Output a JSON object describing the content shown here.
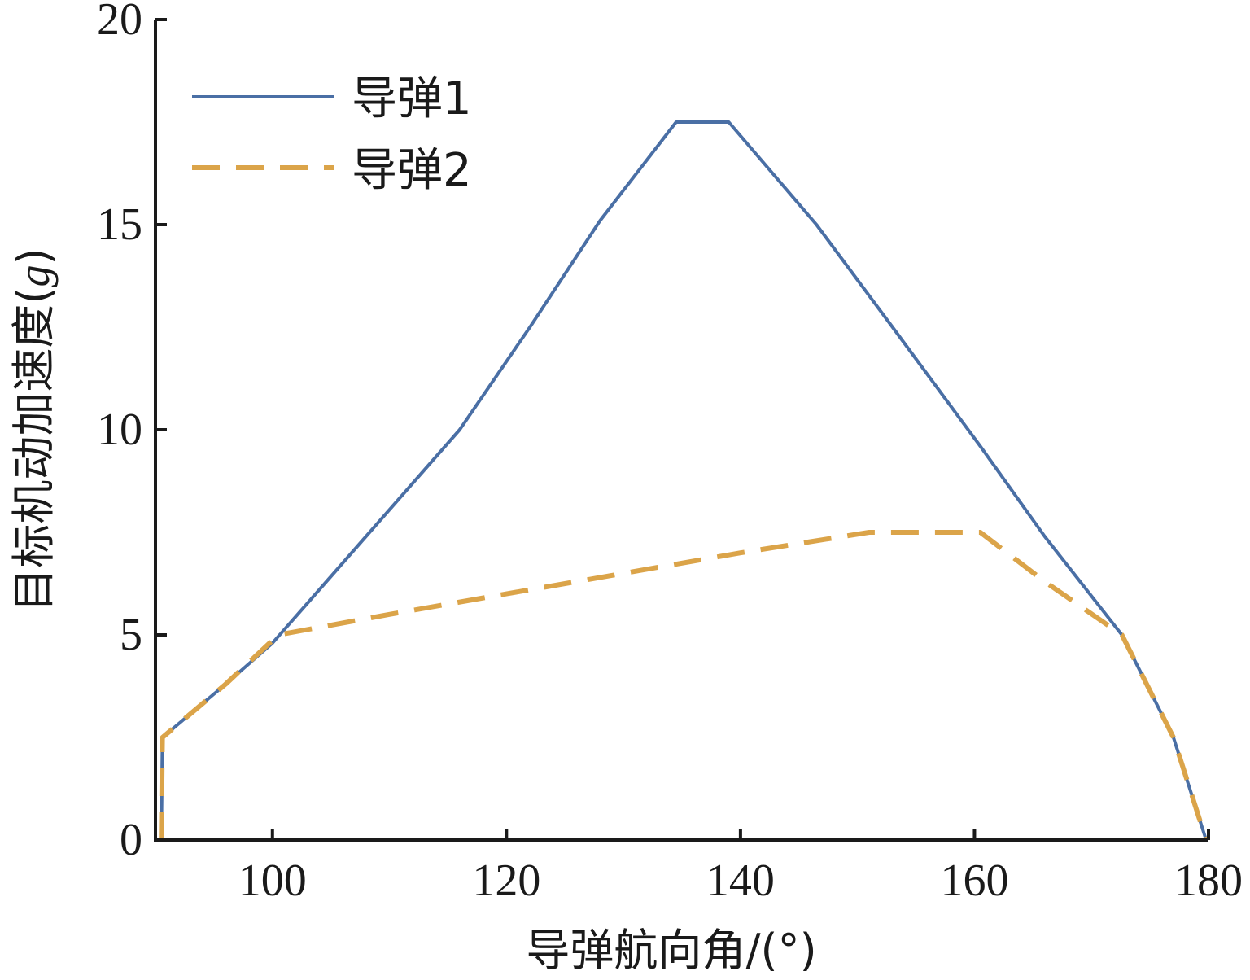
{
  "chart_data": {
    "type": "line",
    "xlabel": "导弹航向角/(°)",
    "ylabel_main": "目标机动加速度(",
    "ylabel_unit": "g",
    "ylabel_close": ")",
    "xlim": [
      90,
      180
    ],
    "ylim": [
      0,
      20
    ],
    "xticks": [
      100,
      120,
      140,
      160,
      180
    ],
    "yticks": [
      0,
      5,
      10,
      15,
      20
    ],
    "grid": false,
    "legend_position": "top-left",
    "series": [
      {
        "name": "导弹1",
        "color": "#4a6fa5",
        "style": "solid",
        "x": [
          90.5,
          90.6,
          96,
          100,
          108,
          116,
          122,
          128,
          134.5,
          139,
          146.5,
          153,
          160.5,
          166,
          172.6,
          177,
          179.8
        ],
        "y": [
          0,
          2.5,
          3.8,
          4.8,
          7.4,
          10.0,
          12.5,
          15.1,
          17.5,
          17.5,
          15.0,
          12.5,
          9.6,
          7.4,
          5.0,
          2.5,
          0
        ]
      },
      {
        "name": "导弹2",
        "color": "#dba449",
        "style": "dashed",
        "x": [
          90.5,
          90.6,
          96,
          100.5,
          110,
          120,
          130,
          140,
          151,
          160.5,
          166,
          172.6,
          177,
          179.8
        ],
        "y": [
          0,
          2.5,
          3.8,
          5.0,
          5.5,
          6.0,
          6.5,
          7.0,
          7.5,
          7.5,
          6.3,
          5.0,
          2.5,
          0
        ]
      }
    ]
  }
}
